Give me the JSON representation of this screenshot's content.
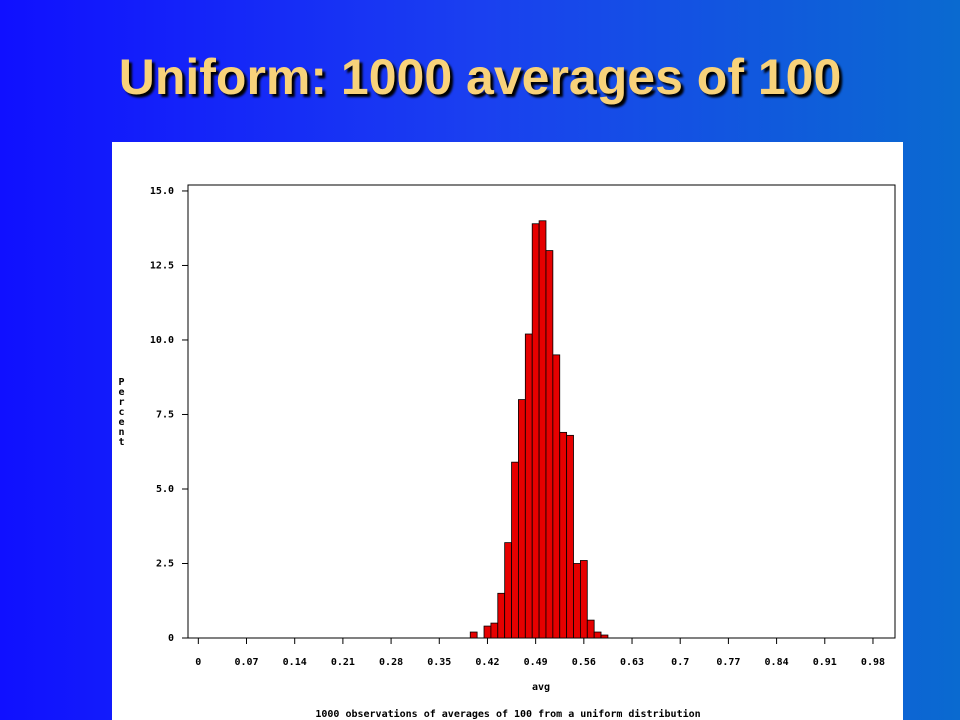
{
  "chart_data": {
    "type": "histogram",
    "title": "Uniform: 1000 averages of 100",
    "x_label": "avg",
    "y_label": "Percent",
    "footnote": "1000 observations of averages of 100 from a uniform distribution",
    "bins": [
      0.395,
      0.405,
      0.415,
      0.425,
      0.435,
      0.445,
      0.455,
      0.465,
      0.475,
      0.485,
      0.495,
      0.505,
      0.515,
      0.525,
      0.535,
      0.545,
      0.555,
      0.565,
      0.575,
      0.585,
      0.595
    ],
    "values": [
      0.2,
      0,
      0.4,
      0.5,
      1.5,
      3.2,
      5.9,
      8.0,
      10.2,
      13.9,
      14.0,
      13.0,
      9.5,
      6.9,
      6.8,
      2.5,
      2.6,
      0.6,
      0.2,
      0.1
    ],
    "color": "#e60000",
    "xlim": [
      -0.015,
      1.012
    ],
    "ylim": [
      0,
      15.2
    ],
    "xticks": [
      0,
      0.07,
      0.14,
      0.21,
      0.28,
      0.35,
      0.42,
      0.49,
      0.56,
      0.63,
      0.7,
      0.77,
      0.84,
      0.91,
      0.98
    ],
    "yticks": [
      0,
      2.5,
      {
        "value": 5,
        "label": "5.0"
      },
      7.5,
      {
        "value": 10,
        "label": "10.0"
      },
      12.5,
      {
        "value": 15,
        "label": "15.0"
      }
    ],
    "grid": false
  }
}
